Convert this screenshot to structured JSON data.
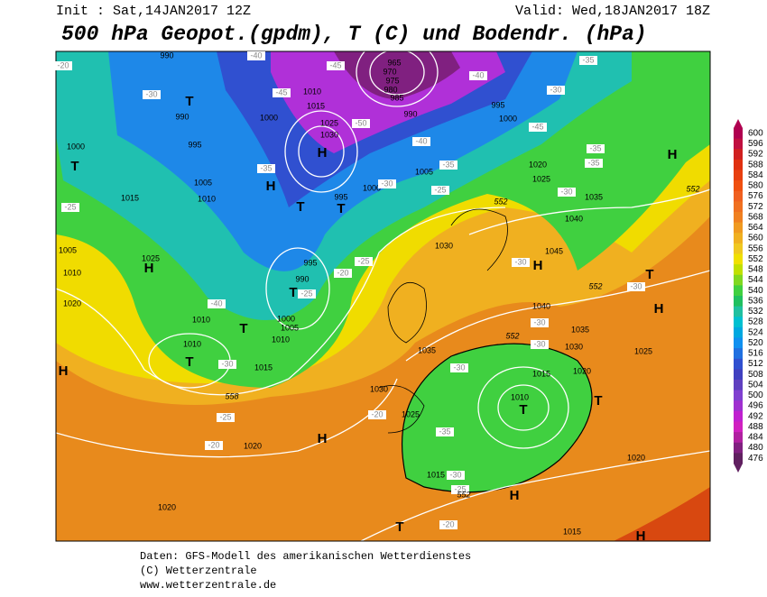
{
  "header": {
    "init": "Init : Sat,14JAN2017 12Z",
    "valid": "Valid: Wed,18JAN2017 18Z",
    "title": "500 hPa Geopot.(gpdm), T (C) und Bodendr. (hPa)"
  },
  "footer": [
    "Daten: GFS-Modell des amerikanischen Wetterdienstes",
    "(C) Wetterzentrale",
    "www.wetterzentrale.de"
  ],
  "colorbar": {
    "labels": [
      600,
      596,
      592,
      588,
      584,
      580,
      576,
      572,
      568,
      564,
      560,
      556,
      552,
      548,
      544,
      540,
      536,
      532,
      528,
      524,
      520,
      516,
      512,
      508,
      504,
      500,
      496,
      492,
      488,
      484,
      480,
      476
    ],
    "colors": [
      "#b00050",
      "#c01040",
      "#d02020",
      "#e03010",
      "#e84010",
      "#f05010",
      "#f06020",
      "#f07020",
      "#f08020",
      "#f09a20",
      "#f0b020",
      "#f0c820",
      "#f0e000",
      "#c0e000",
      "#80d820",
      "#40d040",
      "#20c060",
      "#20c0a0",
      "#00c0d0",
      "#00a8e0",
      "#1090f0",
      "#2070e0",
      "#3050d0",
      "#4040c0",
      "#6040c0",
      "#8040d0",
      "#a030d0",
      "#c020d0",
      "#d020c0",
      "#b020a0",
      "#802080",
      "#602060"
    ]
  },
  "map": {
    "high_low": [
      "H",
      "T",
      "H",
      "T",
      "T",
      "H",
      "T",
      "T",
      "T",
      "H",
      "T",
      "H",
      "H",
      "H",
      "T",
      "T",
      "T",
      "H",
      "H",
      "T",
      "H"
    ],
    "isobar_labels": [
      990,
      990,
      1000,
      995,
      1005,
      1015,
      1010,
      1000,
      1010,
      1015,
      1025,
      1030,
      995,
      1000,
      1005,
      1020,
      1025,
      1035,
      1040,
      1045,
      1030,
      1005,
      1010,
      1020,
      1025,
      995,
      990,
      1000,
      1005,
      1010,
      1010,
      1010,
      1015,
      1040,
      1035,
      1030,
      1025,
      1035,
      1030,
      1025,
      1015,
      1020,
      1010,
      1020,
      1020,
      1020,
      1015,
      1015,
      1000,
      995,
      990,
      985,
      980,
      975,
      970,
      965
    ],
    "temperature_labels": [
      -20,
      -30,
      -45,
      -40,
      -45,
      -50,
      -40,
      -45,
      -40,
      -35,
      -30,
      -35,
      -35,
      -30,
      -35,
      -25,
      -30,
      -35,
      -40,
      -30,
      -25,
      -20,
      -25,
      -20,
      -25,
      -30,
      -30,
      -30,
      -30,
      -35,
      -30,
      -25,
      -20,
      -20,
      -30,
      -25
    ],
    "height_labels": [
      552,
      558,
      552,
      552,
      552,
      552
    ]
  }
}
